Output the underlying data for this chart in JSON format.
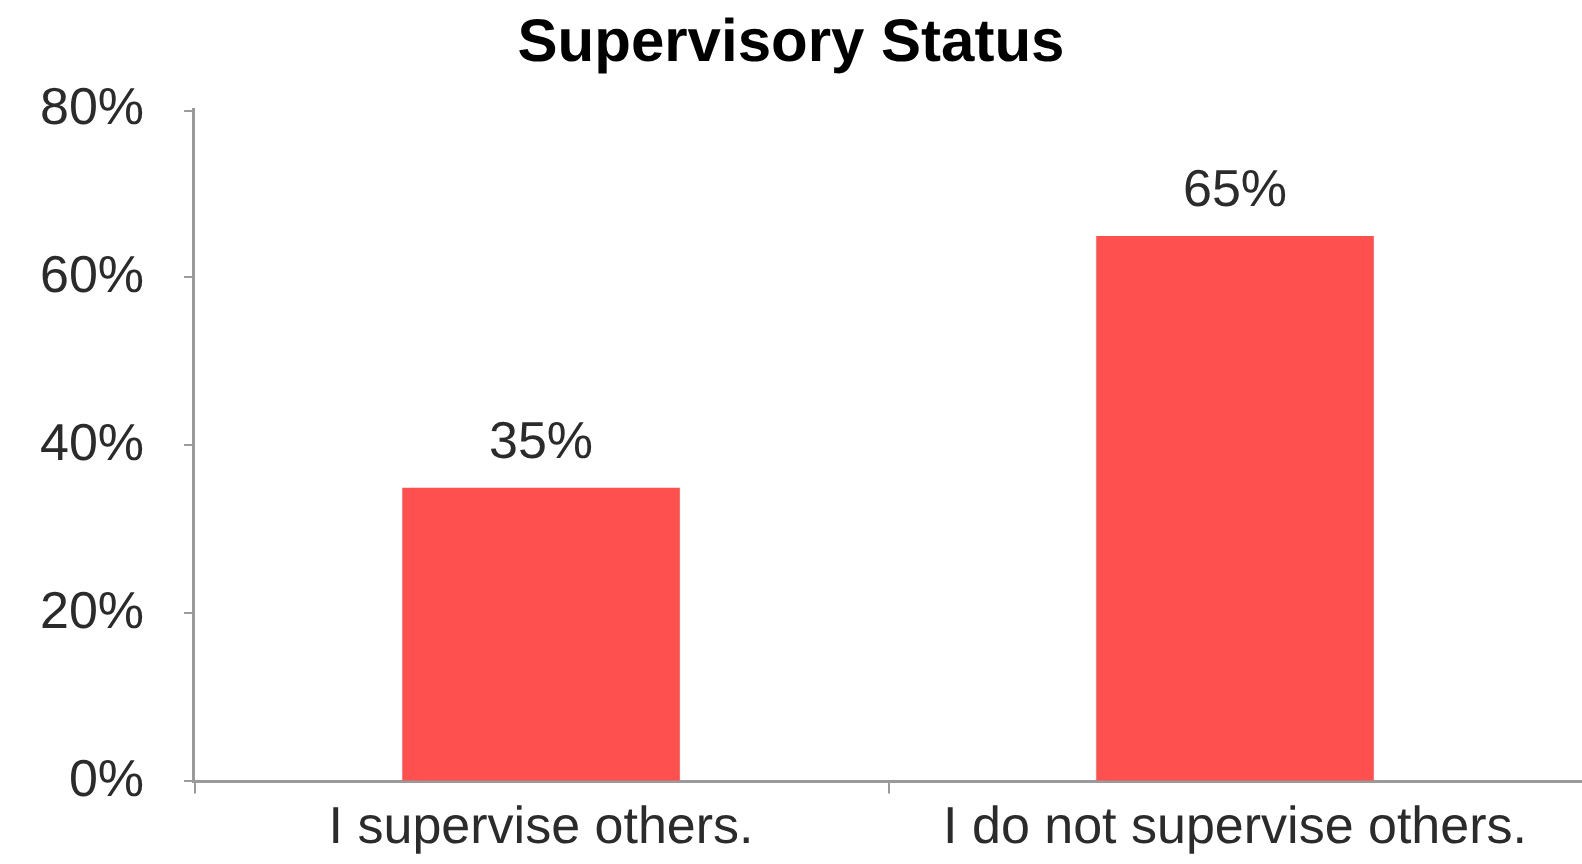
{
  "chart_data": {
    "type": "bar",
    "title": "Supervisory Status",
    "categories": [
      "I supervise others.",
      "I do not supervise others."
    ],
    "values": [
      35,
      65
    ],
    "color": "#ff5050",
    "value_labels": [
      "35%",
      "65%"
    ],
    "ylim": [
      0,
      80
    ],
    "yticks": [
      {
        "value": 0,
        "label": "0%"
      },
      {
        "value": 20,
        "label": "20%"
      },
      {
        "value": 40,
        "label": "40%"
      },
      {
        "value": 60,
        "label": "60%"
      },
      {
        "value": 80,
        "label": "80%"
      }
    ],
    "grid": false,
    "legend": false
  }
}
